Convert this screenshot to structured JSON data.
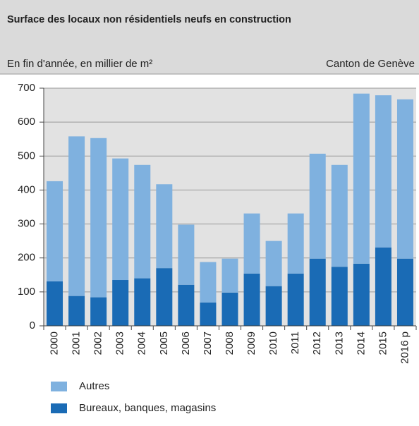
{
  "chart_data": {
    "type": "stacked_bar",
    "title": "Surface des locaux non résidentiels neufs en construction",
    "subtitle": "En fin d'année, en millier de m²",
    "annotation": "Canton de Genève",
    "categories": [
      "2000",
      "2001",
      "2002",
      "2003",
      "2004",
      "2005",
      "2006",
      "2007",
      "2008",
      "2009",
      "2010",
      "2011",
      "2012",
      "2013",
      "2014",
      "2015",
      "2016 p"
    ],
    "series": [
      {
        "name": "Bureaux, banques, magasins",
        "color": "#1a6bb5",
        "values": [
          131,
          88,
          84,
          135,
          140,
          170,
          121,
          69,
          98,
          154,
          117,
          154,
          198,
          174,
          183,
          231,
          198
        ]
      },
      {
        "name": "Autres",
        "color": "#7fb1df",
        "values": [
          295,
          470,
          469,
          358,
          334,
          247,
          177,
          119,
          100,
          177,
          133,
          177,
          309,
          300,
          501,
          448,
          469
        ]
      }
    ],
    "ylim": [
      0,
      700
    ],
    "yticks": [
      0,
      100,
      200,
      300,
      400,
      500,
      600,
      700
    ],
    "grid": true
  }
}
